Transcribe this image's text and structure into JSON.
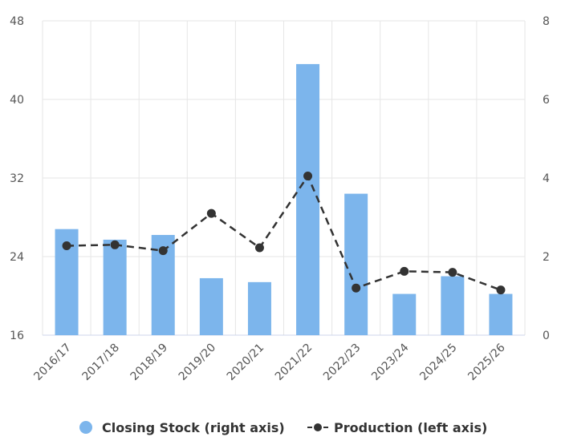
{
  "chart_data": {
    "type": "bar",
    "categories": [
      "2016/17",
      "2017/18",
      "2018/19",
      "2019/20",
      "2020/21",
      "2021/22",
      "2022/23",
      "2023/24",
      "2024/25",
      "2025/26"
    ],
    "series": [
      {
        "name": "Closing Stock (right axis)",
        "type": "bar",
        "axis": "right",
        "color": "#7cb5ec",
        "values": [
          2.7,
          2.43,
          2.55,
          1.45,
          1.35,
          6.9,
          3.6,
          1.05,
          1.5,
          1.05
        ]
      },
      {
        "name": "Production (left axis)",
        "type": "line",
        "axis": "left",
        "color": "#333333",
        "dash": true,
        "values": [
          25.1,
          25.2,
          24.6,
          28.4,
          24.9,
          32.2,
          20.8,
          22.5,
          22.4,
          20.6
        ]
      }
    ],
    "left_axis": {
      "min": 16,
      "max": 48,
      "ticks": [
        16,
        24,
        32,
        40,
        48
      ]
    },
    "right_axis": {
      "min": 0,
      "max": 8,
      "ticks": [
        0,
        2,
        4,
        6,
        8
      ]
    },
    "grid": true,
    "legend_position": "bottom"
  }
}
